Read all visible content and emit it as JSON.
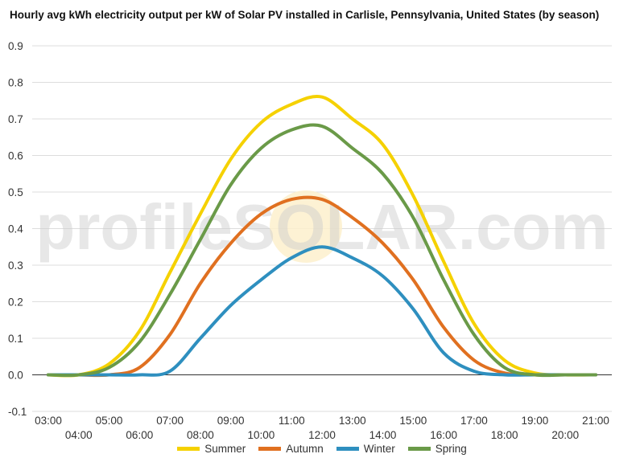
{
  "chart_data": {
    "type": "line",
    "title": "Hourly avg kWh electricity output per kW of Solar PV installed in Carlisle, Pennsylvania, United States (by season)",
    "xlabel": "",
    "ylabel": "",
    "watermark": "profileSOLAR.com",
    "ylim": [
      -0.1,
      0.9
    ],
    "yticks": [
      "-0.1",
      "0.0",
      "0.1",
      "0.2",
      "0.3",
      "0.4",
      "0.5",
      "0.6",
      "0.7",
      "0.8",
      "0.9"
    ],
    "xticks_upper": [
      "03:00",
      "05:00",
      "07:00",
      "09:00",
      "11:00",
      "13:00",
      "15:00",
      "17:00",
      "19:00",
      "21:00"
    ],
    "xticks_lower": [
      "04:00",
      "06:00",
      "08:00",
      "10:00",
      "12:00",
      "14:00",
      "16:00",
      "18:00",
      "20:00"
    ],
    "x": [
      "03:00",
      "04:00",
      "05:00",
      "06:00",
      "07:00",
      "08:00",
      "09:00",
      "10:00",
      "11:00",
      "12:00",
      "13:00",
      "14:00",
      "15:00",
      "16:00",
      "17:00",
      "18:00",
      "19:00",
      "20:00",
      "21:00"
    ],
    "grid": true,
    "legend_position": "bottom",
    "series": [
      {
        "name": "Summer",
        "color": "#f5d100",
        "values": [
          0.0,
          0.0,
          0.03,
          0.12,
          0.28,
          0.44,
          0.59,
          0.69,
          0.74,
          0.76,
          0.7,
          0.63,
          0.49,
          0.31,
          0.14,
          0.04,
          0.005,
          0.0,
          0.0
        ]
      },
      {
        "name": "Autumn",
        "color": "#e07020",
        "values": [
          0.0,
          0.0,
          0.0,
          0.02,
          0.11,
          0.25,
          0.36,
          0.44,
          0.48,
          0.48,
          0.43,
          0.36,
          0.26,
          0.13,
          0.04,
          0.005,
          0.0,
          0.0,
          0.0
        ]
      },
      {
        "name": "Winter",
        "color": "#2e8fbf",
        "values": [
          0.0,
          0.0,
          0.0,
          0.0,
          0.01,
          0.1,
          0.19,
          0.26,
          0.32,
          0.35,
          0.32,
          0.27,
          0.18,
          0.06,
          0.01,
          0.0,
          0.0,
          0.0,
          0.0
        ]
      },
      {
        "name": "Spring",
        "color": "#6a9a48",
        "values": [
          0.0,
          0.0,
          0.02,
          0.09,
          0.22,
          0.37,
          0.52,
          0.62,
          0.67,
          0.68,
          0.62,
          0.55,
          0.43,
          0.26,
          0.11,
          0.02,
          0.0,
          0.0,
          0.0
        ]
      }
    ]
  }
}
